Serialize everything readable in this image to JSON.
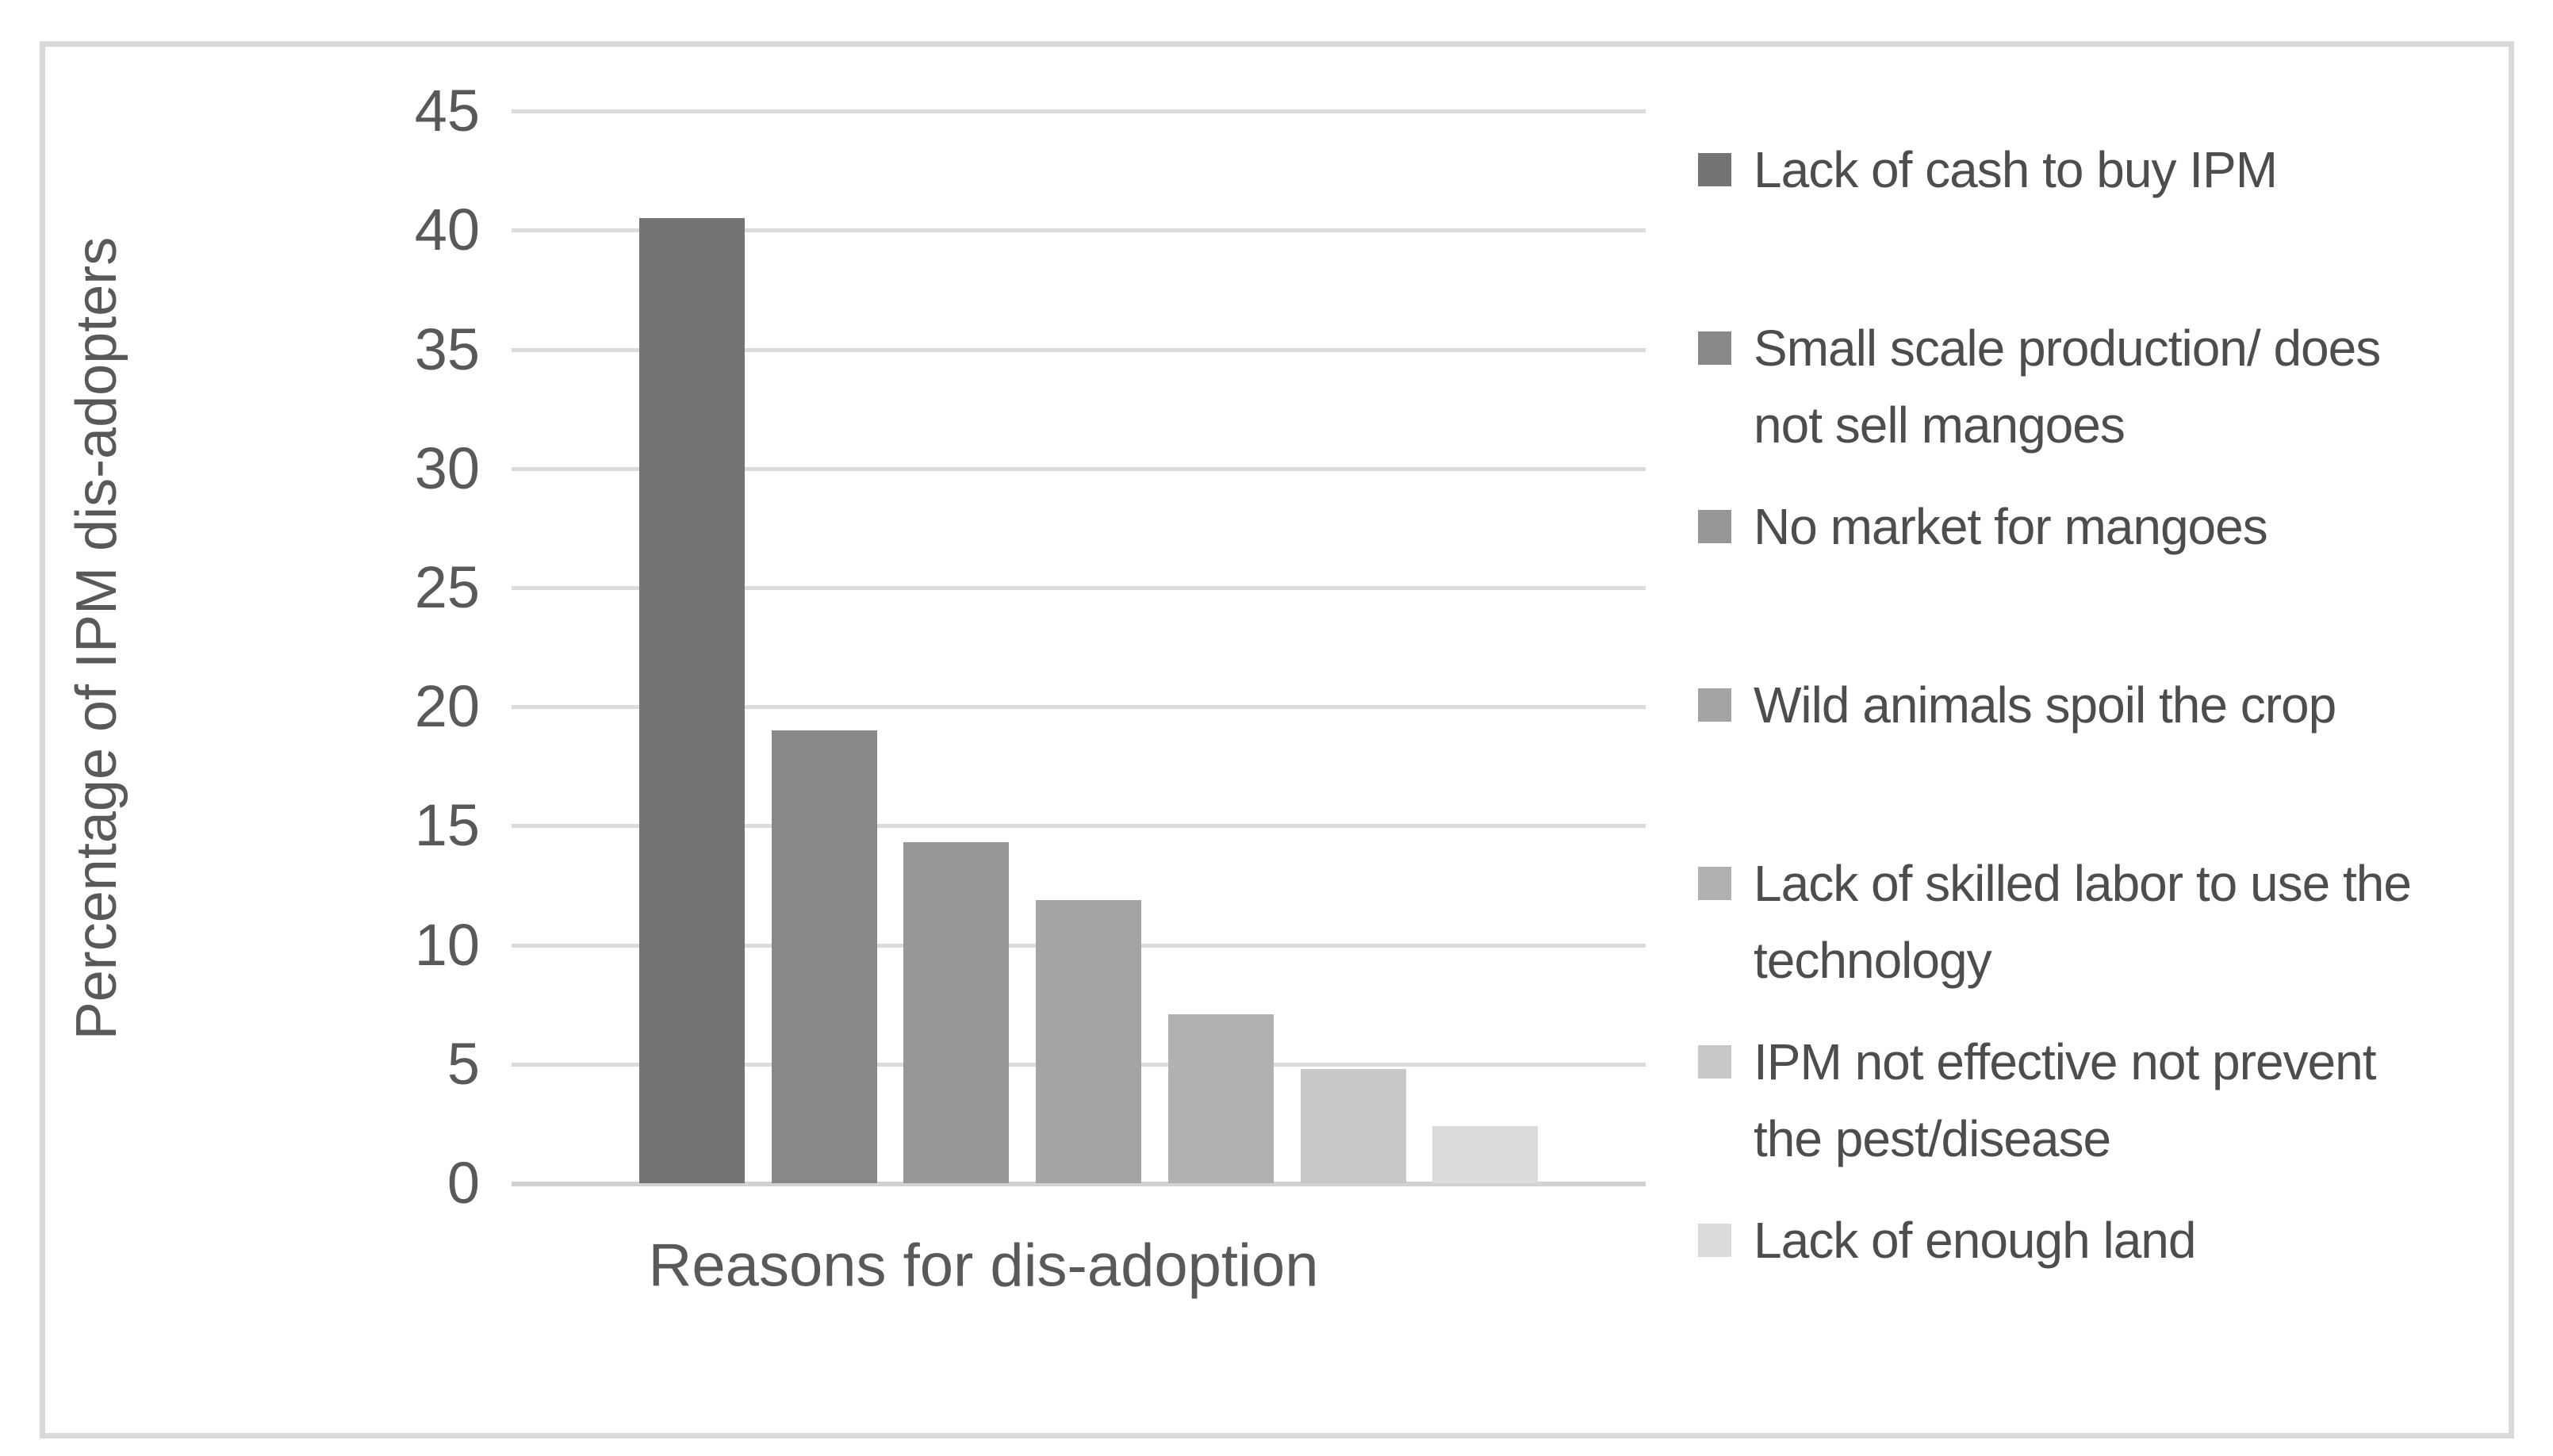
{
  "chart_data": {
    "type": "bar",
    "title": "",
    "xlabel": "Reasons for dis-adoption",
    "ylabel": "Percentage of IPM dis-adopters",
    "ylim": [
      0,
      45
    ],
    "ytick_step": 5,
    "yticks": [
      0,
      5,
      10,
      15,
      20,
      25,
      30,
      35,
      40,
      45
    ],
    "grid": "horizontal",
    "gridline_color": "#dcdcdc",
    "legend_position": "right",
    "categories": [
      "Lack of cash to buy IPM",
      "Small scale production/ does not sell mangoes",
      "No market for mangoes",
      "Wild animals spoil the crop",
      "Lack of skilled labor to use the technology",
      "IPM not effective not prevent the pest/disease",
      "Lack of enough land"
    ],
    "values": [
      40.5,
      19,
      14.3,
      11.9,
      7.1,
      4.8,
      2.4
    ],
    "colors": [
      "#747474",
      "#888888",
      "#979797",
      "#a4a4a4",
      "#b1b1b1",
      "#c8c8c8",
      "#dbdbdb"
    ],
    "text_color": "#595959",
    "legend_text_color": "#4d4d4d"
  },
  "legend": {
    "items": [
      {
        "lines": [
          "Lack of cash to buy IPM"
        ]
      },
      {
        "lines": [
          "Small scale production/ does",
          "not sell mangoes"
        ]
      },
      {
        "lines": [
          "No market for mangoes"
        ]
      },
      {
        "lines": [
          "Wild animals spoil the crop"
        ]
      },
      {
        "lines": [
          "Lack of skilled labor to use the",
          "technology"
        ]
      },
      {
        "lines": [
          "IPM not effective not prevent",
          "the pest/disease"
        ]
      },
      {
        "lines": [
          "Lack of enough land"
        ]
      }
    ]
  }
}
